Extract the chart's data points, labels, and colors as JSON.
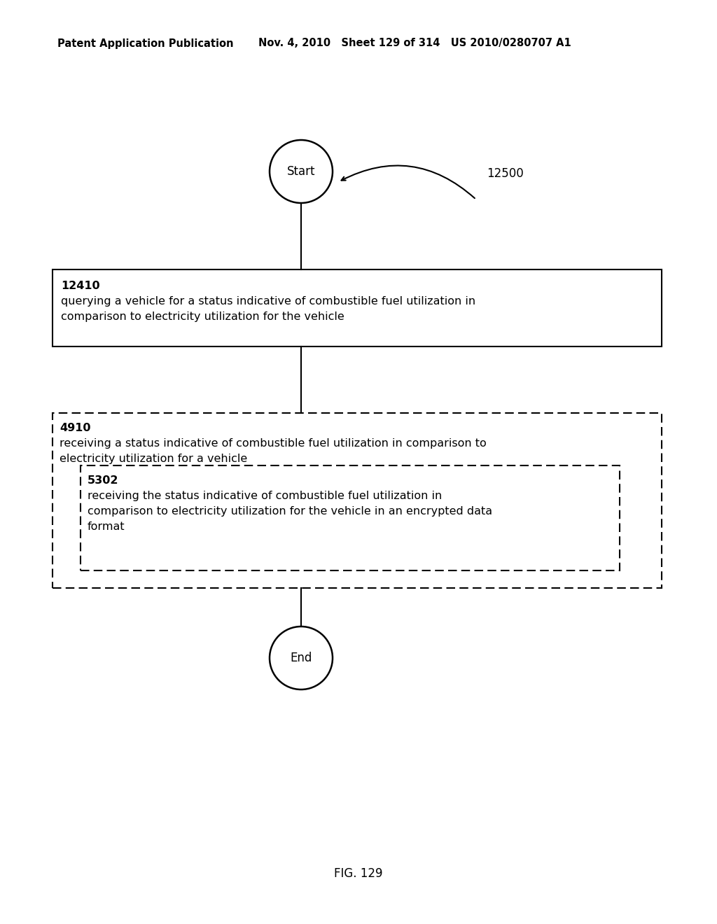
{
  "bg_color": "#ffffff",
  "header_left": "Patent Application Publication",
  "header_right": "Nov. 4, 2010   Sheet 129 of 314   US 2010/0280707 A1",
  "fig_label": "FIG. 129",
  "diagram_label": "12500",
  "start_label": "Start",
  "end_label": "End",
  "box1_id": "12410",
  "box1_line1": "querying a vehicle for a status indicative of combustible fuel utilization in",
  "box1_line2": "comparison to electricity utilization for the vehicle",
  "outer_box_id": "4910",
  "outer_line1": "receiving a status indicative of combustible fuel utilization in comparison to",
  "outer_line2": "electricity utilization for a vehicle",
  "inner_box_id": "5302",
  "inner_line1": "receiving the status indicative of combustible fuel utilization in",
  "inner_line2": "comparison to electricity utilization for the vehicle in an encrypted data",
  "inner_line3": "format",
  "header_fontsize": 10.5,
  "body_fontsize": 11.5,
  "id_fontsize": 11.5
}
